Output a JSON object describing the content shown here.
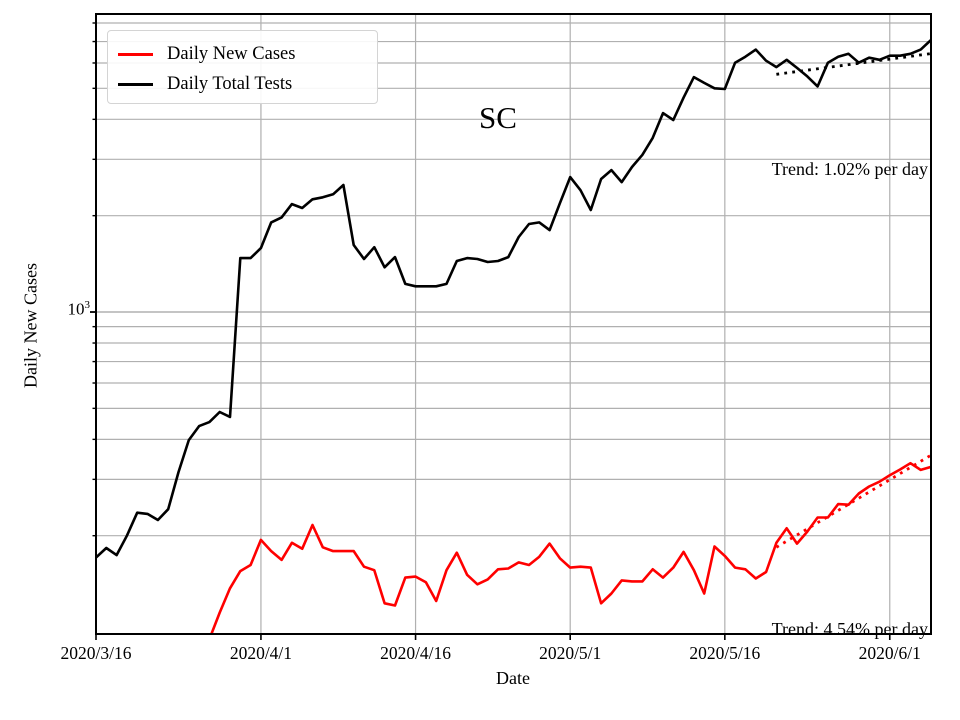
{
  "chart": {
    "title": "SC",
    "xlabel": "Date",
    "ylabel": "Daily New Cases",
    "y_tick": {
      "base": "10",
      "exp": "3"
    },
    "legend": [
      {
        "label": "Daily New Cases",
        "color": "#ff0000"
      },
      {
        "label": "Daily Total Tests",
        "color": "#000000"
      }
    ],
    "annotations": [
      {
        "text": "Trend: 1.02% per day"
      },
      {
        "text": "Trend: 4.54% per day"
      }
    ],
    "colors": {
      "grid": "#b0b0b0",
      "spine": "#000000"
    }
  },
  "chart_data": {
    "type": "line",
    "yscale": "log",
    "ylim": [
      98.6,
      8535
    ],
    "x_tick_labels": [
      "2020/3/16",
      "2020/4/1",
      "2020/4/16",
      "2020/5/1",
      "2020/5/16",
      "2020/6/1"
    ],
    "x_tick_days": [
      0,
      16,
      31,
      46,
      61,
      77
    ],
    "x_total_days": 81,
    "y_gridlines_minor": [
      200,
      300,
      400,
      500,
      600,
      700,
      800,
      900,
      2000,
      3000,
      4000,
      5000,
      6000,
      7000,
      8000
    ],
    "y_gridlines_major": [
      1000
    ],
    "series": [
      {
        "name": "Daily Total Tests",
        "color": "#000000",
        "start_day": 0,
        "values": [
          171,
          183,
          174,
          200,
          236,
          234,
          224,
          242,
          316,
          398,
          440,
          453,
          487,
          470,
          1474,
          1474,
          1584,
          1906,
          1975,
          2173,
          2114,
          2250,
          2283,
          2333,
          2493,
          1620,
          1464,
          1594,
          1379,
          1485,
          1224,
          1203,
          1203,
          1203,
          1224,
          1443,
          1474,
          1464,
          1433,
          1443,
          1485,
          1715,
          1884,
          1906,
          1803,
          2188,
          2640,
          2403,
          2084,
          2604,
          2776,
          2547,
          2838,
          3100,
          3500,
          4185,
          3980,
          4677,
          5420,
          5200,
          5000,
          4977,
          6012,
          6278,
          6607,
          6100,
          5824,
          6140,
          5792,
          5447,
          5069,
          6012,
          6278,
          6412,
          6012,
          6232,
          6140,
          6324,
          6324,
          6412,
          6607,
          7079
        ]
      },
      {
        "name": "Daily New Cases",
        "color": "#ff0000",
        "start_day": 11,
        "values": [
          95,
          115,
          137,
          155,
          162,
          194,
          179,
          168,
          190,
          182,
          216,
          184,
          179,
          179,
          179,
          160,
          156,
          123,
          121,
          148,
          149,
          143,
          125,
          156,
          177,
          151,
          141,
          146,
          157,
          158,
          165,
          162,
          172,
          189,
          170,
          159,
          160,
          159,
          123,
          132,
          145,
          144,
          144,
          157,
          148,
          159,
          178,
          156,
          132,
          185,
          173,
          159,
          157,
          147,
          154,
          190,
          211,
          189,
          206,
          228,
          228,
          251,
          250,
          271,
          285,
          295,
          309,
          322,
          337,
          321,
          328
        ]
      }
    ],
    "trends": [
      {
        "series": "Daily Total Tests",
        "label": "Trend: 1.02% per day",
        "start_day": 66,
        "end_day": 81,
        "start_value": 5530,
        "end_value": 6420,
        "color": "#000000"
      },
      {
        "series": "Daily New Cases",
        "label": "Trend: 4.54% per day",
        "start_day": 66,
        "end_day": 81,
        "start_value": 184,
        "end_value": 357,
        "color": "#ff0000"
      }
    ]
  }
}
